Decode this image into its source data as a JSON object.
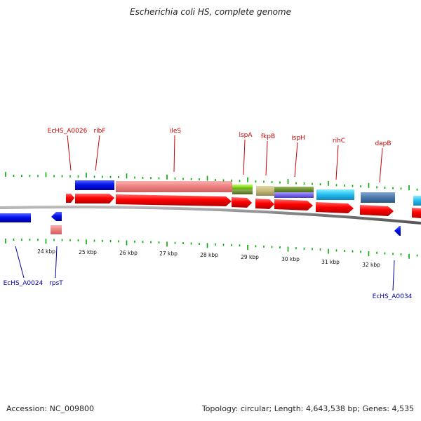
{
  "title": "Escherichia coli HS, complete genome",
  "footer": {
    "accession": "Accession: NC_009800",
    "summary": "Topology: circular; Length: 4,643,538 bp; Genes: 4,535"
  },
  "kbp_ticks": [
    "24 kbp",
    "25 kbp",
    "26 kbp",
    "27 kbp",
    "28 kbp",
    "29 kbp",
    "30 kbp",
    "31 kbp",
    "32 kbp"
  ],
  "labels_top": [
    "EcHS_A0026",
    "ribF",
    "ileS",
    "lspA",
    "fkpB",
    "ispH",
    "rihC",
    "dapB"
  ],
  "labels_bottom": [
    "EcHS_A0024",
    "rpsT",
    "EcHS_A0034"
  ],
  "colors": {
    "label_top": "#cc0000",
    "label_bottom": "#0000aa",
    "gene_red": "#ff0000",
    "gene_blue": "#0000dd",
    "tick_green": "#00aa00",
    "backbone": "#888888"
  }
}
